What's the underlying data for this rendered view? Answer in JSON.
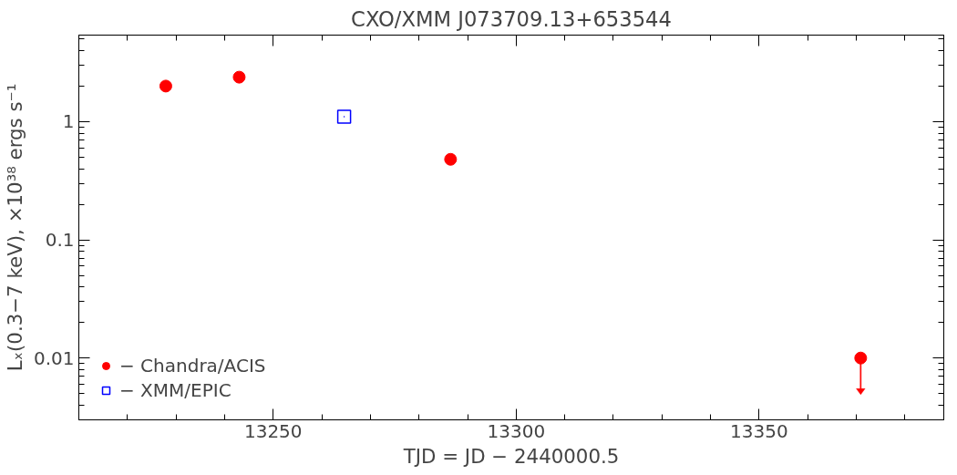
{
  "chart_data": {
    "type": "scatter",
    "title": "CXO/XMM J073709.13+653544",
    "xlabel": "TJD = JD − 2440000.5",
    "ylabel": "Lₓ(0.3−7 keV), ×10³⁸ ergs s⁻¹",
    "series": [
      {
        "name": "− Chandra/ACIS",
        "color": "#ff0000",
        "marker": "circle",
        "x": [
          13227.9,
          13243,
          13286.5,
          13370.9
        ],
        "values": [
          2.0,
          2.38,
          0.48,
          0.01
        ],
        "errors": [
          null,
          null,
          null,
          [
            0.0055,
            0.01
          ]
        ]
      },
      {
        "name": "− XMM/EPIC",
        "color": "#0000ff",
        "marker": "square",
        "x": [
          13264.6
        ],
        "values": [
          1.1
        ]
      }
    ],
    "xlim": [
      13210,
      13388
    ],
    "ylim": [
      0.003,
      5.4
    ],
    "xticks": [
      13250,
      13300,
      13350
    ],
    "yticks": [
      0.01,
      0.1,
      1
    ],
    "log": "y",
    "grid": false,
    "legend": "bottom left"
  }
}
